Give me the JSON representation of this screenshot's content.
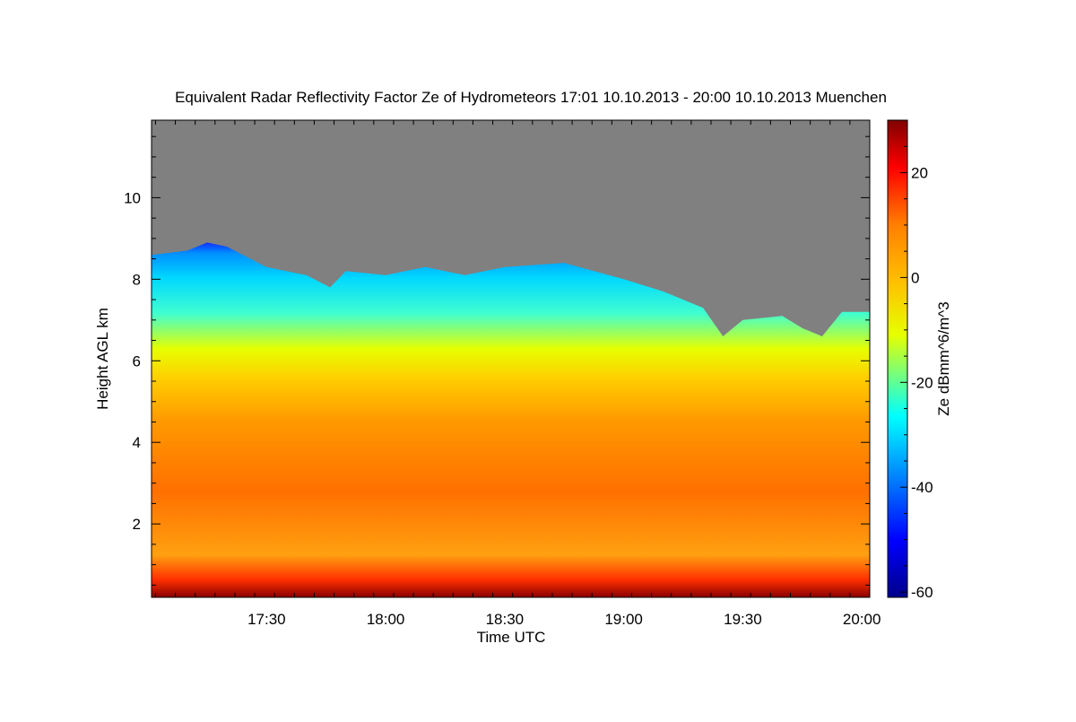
{
  "chart_data": {
    "type": "heatmap",
    "title": "Equivalent Radar Reflectivity Factor Ze of Hydrometeors   17:01 10.10.2013 - 20:00 10.10.2013 Muenchen",
    "xlabel": "Time UTC",
    "ylabel": "Height AGL km",
    "colorbar_label": "Ze dBmm^6/m^3",
    "x_range": [
      "17:01",
      "20:02"
    ],
    "x_ticks": [
      "17:30",
      "18:00",
      "18:30",
      "19:00",
      "19:30",
      "20:00"
    ],
    "y_range_km": [
      0.2,
      11.9
    ],
    "y_ticks": [
      2,
      4,
      6,
      8,
      10
    ],
    "colorbar_range": [
      -61,
      30
    ],
    "colorbar_ticks": [
      20,
      0,
      -20,
      -40,
      -60
    ],
    "no_data_color": "#808080",
    "colormap": [
      "#00008a",
      "#0000ff",
      "#00b2ff",
      "#00ffff",
      "#e6ff00",
      "#ffc000",
      "#ff8000",
      "#ff0000",
      "#800000"
    ],
    "echo_top_km": [
      {
        "t": "17:01",
        "h": 8.6
      },
      {
        "t": "17:10",
        "h": 8.7
      },
      {
        "t": "17:15",
        "h": 8.9
      },
      {
        "t": "17:20",
        "h": 8.8
      },
      {
        "t": "17:30",
        "h": 8.3
      },
      {
        "t": "17:40",
        "h": 8.1
      },
      {
        "t": "17:46",
        "h": 7.8
      },
      {
        "t": "17:50",
        "h": 8.2
      },
      {
        "t": "18:00",
        "h": 8.1
      },
      {
        "t": "18:10",
        "h": 8.3
      },
      {
        "t": "18:20",
        "h": 8.1
      },
      {
        "t": "18:30",
        "h": 8.3
      },
      {
        "t": "18:45",
        "h": 8.4
      },
      {
        "t": "19:00",
        "h": 8.0
      },
      {
        "t": "19:10",
        "h": 7.7
      },
      {
        "t": "19:20",
        "h": 7.3
      },
      {
        "t": "19:25",
        "h": 6.6
      },
      {
        "t": "19:30",
        "h": 7.0
      },
      {
        "t": "19:40",
        "h": 7.1
      },
      {
        "t": "19:45",
        "h": 6.8
      },
      {
        "t": "19:50",
        "h": 6.6
      },
      {
        "t": "19:55",
        "h": 7.2
      },
      {
        "t": "20:02",
        "h": 7.2
      }
    ]
  }
}
